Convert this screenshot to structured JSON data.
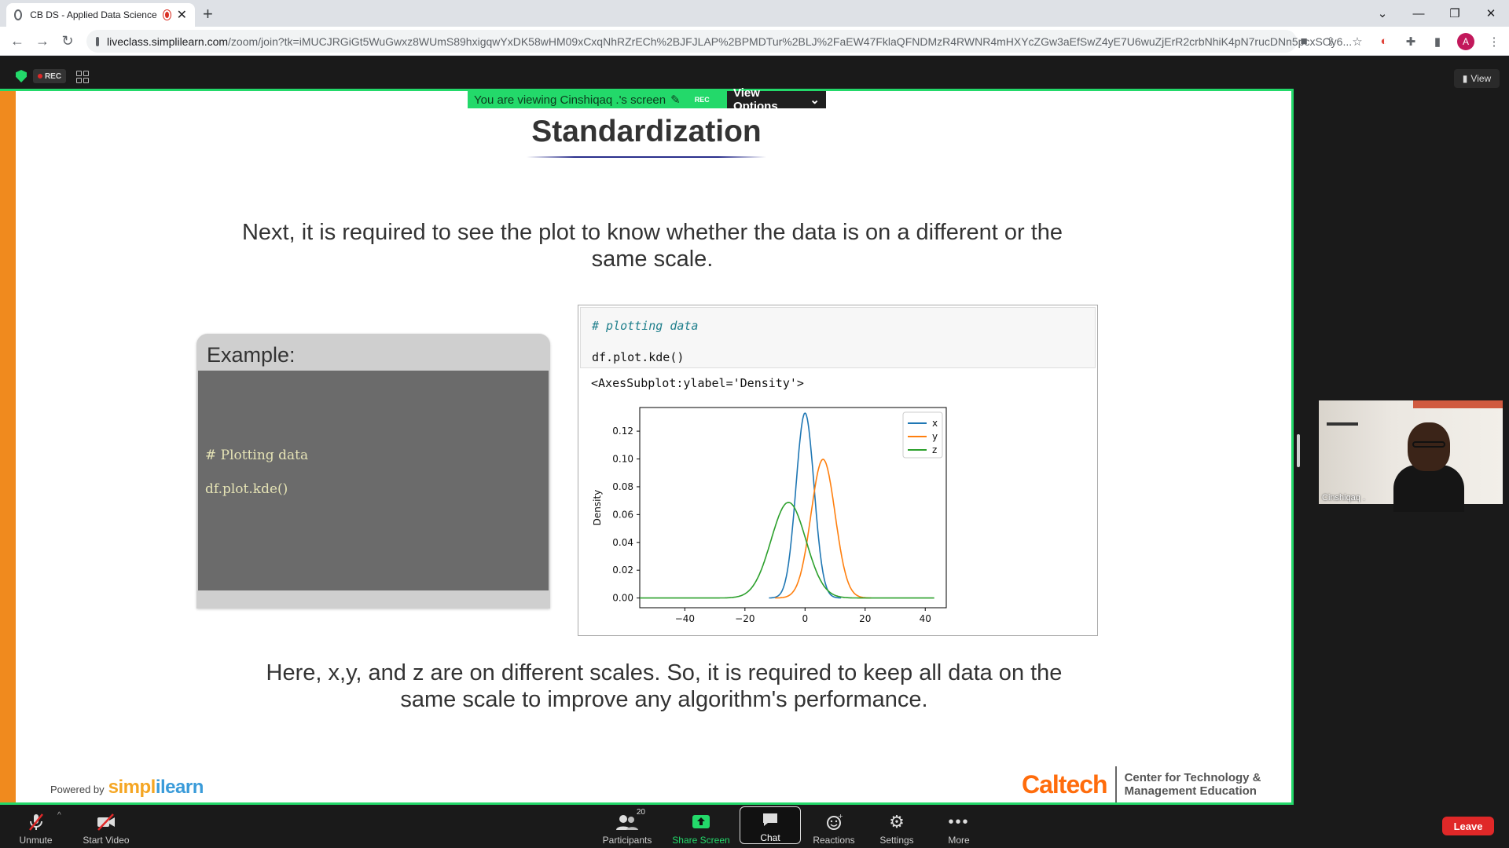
{
  "browser": {
    "tab_title": "CB DS - Applied Data Science",
    "new_tab": "+",
    "url_host": "liveclass.simplilearn.com",
    "url_path": "/zoom/join?tk=iMUCJRGiGt5WuGwxz8WUmS89hxigqwYxDK58wHM09xCxqNhRZrECh%2BJFJLAP%2BPMDTur%2BLJ%2FaEW47FklaQFNDMzR4RWNR4mHXYcZGw3aEfSwZ4yE7U6wuZjErR2crbNhiK4pN7rucDNn5pcxSOy6...",
    "profile_initial": "A"
  },
  "zoom_top": {
    "rec_label": "REC",
    "view_label": "View"
  },
  "banner": {
    "viewing_text": "You are viewing Cinshiqaq .'s screen",
    "rec_small": "REC",
    "view_options": "View Options"
  },
  "slide": {
    "title": "Standardization",
    "para1": "Next, it is required to see the plot to know whether the data is on a different or the same scale.",
    "example_heading": "Example:",
    "example_line1": "# Plotting data",
    "example_line2": "df.plot.kde()",
    "nb_comment": "# plotting data",
    "nb_code": "df.plot.kde()",
    "nb_output": "<AxesSubplot:ylabel='Density'>",
    "para2": "Here, x,y, and z are on different scales. So, it is required to keep all data on the same scale to improve any algorithm's performance.",
    "powered_by": "Powered by",
    "brand_a": "simpl",
    "brand_b": "ilearn",
    "caltech": "Caltech",
    "caltech_sub1": "Center for Technology &",
    "caltech_sub2": "Management Education"
  },
  "chart_data": {
    "type": "line",
    "title": "",
    "xlabel": "",
    "ylabel": "Density",
    "xlim": [
      -55,
      47
    ],
    "ylim": [
      -0.007,
      0.137
    ],
    "xticks": [
      -40,
      -20,
      0,
      20,
      40
    ],
    "yticks": [
      0.0,
      0.02,
      0.04,
      0.06,
      0.08,
      0.1,
      0.12
    ],
    "legend_placement": "top-right",
    "grid": false,
    "series": [
      {
        "name": "x",
        "color": "#1f77b4",
        "mean": 0,
        "sd": 3.0,
        "x_range": [
          -12,
          12
        ]
      },
      {
        "name": "y",
        "color": "#ff7f0e",
        "mean": 6,
        "sd": 4.0,
        "x_range": [
          -10,
          22
        ]
      },
      {
        "name": "z",
        "color": "#2ca02c",
        "mean": -5.5,
        "sd": 5.8,
        "x_range": [
          -55,
          43
        ]
      }
    ]
  },
  "participant": {
    "name": "Cinshiqaq ."
  },
  "toolbar": {
    "unmute": "Unmute",
    "start_video": "Start Video",
    "participants": "Participants",
    "participant_count": "20",
    "share_screen": "Share Screen",
    "chat": "Chat",
    "reactions": "Reactions",
    "settings": "Settings",
    "more": "More",
    "leave": "Leave"
  }
}
